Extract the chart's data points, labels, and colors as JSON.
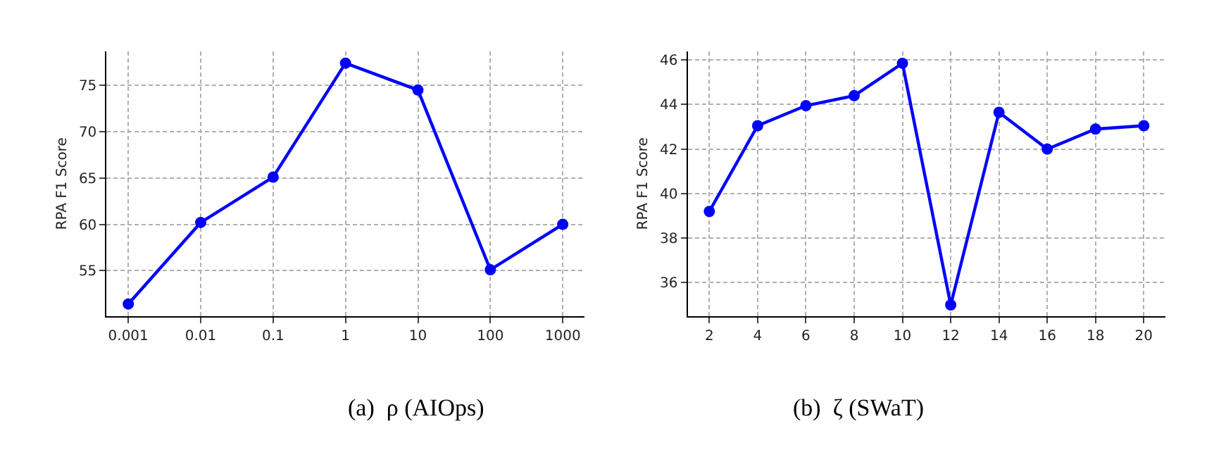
{
  "chart_data": [
    {
      "type": "line",
      "title": "(a)  ρ (AIOps)",
      "ylabel": "RPA F1 Score",
      "categories": [
        "0.001",
        "0.01",
        "0.1",
        "1",
        "10",
        "100",
        "1000"
      ],
      "series": [
        {
          "color": "#0000ff",
          "values": [
            51.4,
            60.2,
            65.1,
            77.4,
            74.5,
            55.1,
            60.0
          ]
        }
      ],
      "ylim": [
        50.1,
        78.7
      ],
      "yticks": [
        55,
        60,
        65,
        70,
        75
      ],
      "grid": true,
      "marker": "circle",
      "line_style": "solid"
    },
    {
      "type": "line",
      "title": "(b)  ζ (SWaT)",
      "ylabel": "RPA F1 Score",
      "x": [
        2,
        4,
        6,
        8,
        10,
        12,
        14,
        16,
        18,
        20
      ],
      "series": [
        {
          "color": "#0000ff",
          "values": [
            39.2,
            43.05,
            43.95,
            44.4,
            45.85,
            35.0,
            43.65,
            42.0,
            42.9,
            43.05
          ]
        }
      ],
      "xlim": [
        1.1,
        20.9
      ],
      "xticks": [
        2,
        4,
        6,
        8,
        10,
        12,
        14,
        16,
        18,
        20
      ],
      "ylim": [
        34.5,
        46.4
      ],
      "yticks": [
        36,
        38,
        40,
        42,
        44,
        46
      ],
      "grid": true,
      "marker": "circle",
      "line_style": "solid"
    }
  ]
}
